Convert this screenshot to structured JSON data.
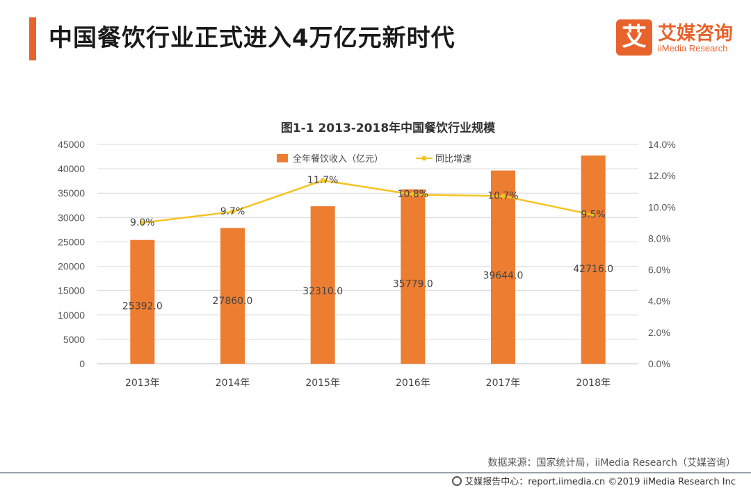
{
  "header": {
    "title": "中国餐饮行业正式进入4万亿元新时代",
    "logo_mark": "艾",
    "logo_cn": "艾媒咨询",
    "logo_en": "iiMedia Research"
  },
  "colors": {
    "accent": "#e8622c",
    "bar": "#ed7d31",
    "line": "#f5c321"
  },
  "chart_data": {
    "type": "bar",
    "title": "图1-1  2013-2018年中国餐饮行业规模",
    "categories": [
      "2013年",
      "2014年",
      "2015年",
      "2016年",
      "2017年",
      "2018年"
    ],
    "series": [
      {
        "name": "全年餐饮收入（亿元）",
        "type": "bar",
        "axis": "left",
        "values": [
          25392.0,
          27860.0,
          32310.0,
          35779.0,
          39644.0,
          42716.0
        ],
        "labels": [
          "25392.0",
          "27860.0",
          "32310.0",
          "35779.0",
          "39644.0",
          "42716.0"
        ]
      },
      {
        "name": "同比增速",
        "type": "line",
        "axis": "right",
        "values": [
          9.0,
          9.7,
          11.7,
          10.8,
          10.7,
          9.5
        ],
        "labels": [
          "9.0%",
          "9.7%",
          "11.7%",
          "10.8%",
          "10.7%",
          "9.5%"
        ]
      }
    ],
    "ylim_left": [
      0,
      45000
    ],
    "yticks_left": [
      "45000",
      "40000",
      "35000",
      "30000",
      "25000",
      "20000",
      "15000",
      "10000",
      "5000",
      "0"
    ],
    "ylim_right": [
      0,
      14
    ],
    "yticks_right": [
      "14.0%",
      "12.0%",
      "10.0%",
      "8.0%",
      "6.0%",
      "4.0%",
      "2.0%",
      "0.0%"
    ],
    "legend_position": "top-center",
    "grid": true
  },
  "footer": {
    "source": "数据来源：国家统计局，iiMedia Research（艾媒咨询）",
    "copyright": "艾媒报告中心：report.iimedia.cn  ©2019  iiMedia Research  Inc"
  }
}
